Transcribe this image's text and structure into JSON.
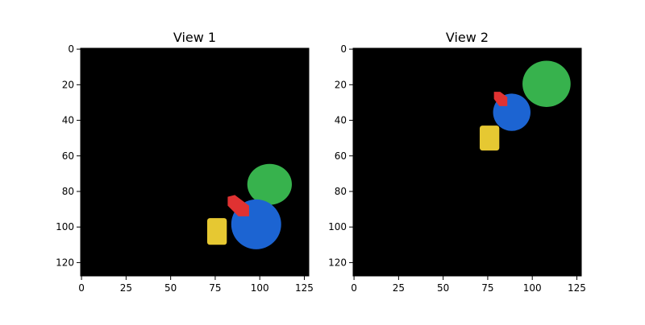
{
  "figure": {
    "background": "#ffffff"
  },
  "chart_data": [
    {
      "type": "image",
      "title": "View 1",
      "xlim": [
        0,
        128
      ],
      "ylim": [
        128,
        0
      ],
      "xticks": [
        0,
        25,
        50,
        75,
        100,
        125
      ],
      "yticks": [
        0,
        20,
        40,
        60,
        80,
        100,
        120
      ],
      "background": "#000000",
      "grid": false,
      "objects": [
        {
          "shape": "ellipse",
          "color": "#37b24d",
          "cx": 105.5,
          "cy": 76,
          "rx": 12.5,
          "ry": 11.5
        },
        {
          "shape": "circle",
          "color": "#1c64d2",
          "cx": 98,
          "cy": 98.5,
          "rx": 14,
          "ry": 14
        },
        {
          "shape": "kite",
          "color": "#e03232",
          "points": [
            [
              82,
              83
            ],
            [
              86,
              82
            ],
            [
              94,
              88
            ],
            [
              94,
              94
            ],
            [
              88,
              94
            ],
            [
              82,
              88
            ]
          ]
        },
        {
          "shape": "rounded-rect",
          "color": "#e6c832",
          "x0": 70.5,
          "y0": 95,
          "x1": 81.5,
          "y1": 110
        }
      ]
    },
    {
      "type": "image",
      "title": "View 2",
      "xlim": [
        0,
        128
      ],
      "ylim": [
        128,
        0
      ],
      "xticks": [
        0,
        25,
        50,
        75,
        100,
        125
      ],
      "yticks": [
        0,
        20,
        40,
        60,
        80,
        100,
        120
      ],
      "background": "#000000",
      "grid": false,
      "objects": [
        {
          "shape": "ellipse",
          "color": "#37b24d",
          "cx": 108,
          "cy": 19.5,
          "rx": 13.5,
          "ry": 13
        },
        {
          "shape": "circle",
          "color": "#1c64d2",
          "cx": 88.5,
          "cy": 35.5,
          "rx": 10.5,
          "ry": 10.5
        },
        {
          "shape": "kite",
          "color": "#e03232",
          "points": [
            [
              78.5,
              24
            ],
            [
              82,
              24
            ],
            [
              86,
              27
            ],
            [
              86,
              32
            ],
            [
              81.5,
              32
            ],
            [
              78.5,
              28
            ]
          ]
        },
        {
          "shape": "rounded-rect",
          "color": "#e6c832",
          "x0": 70.5,
          "y0": 43,
          "x1": 81.5,
          "y1": 57
        }
      ]
    }
  ]
}
